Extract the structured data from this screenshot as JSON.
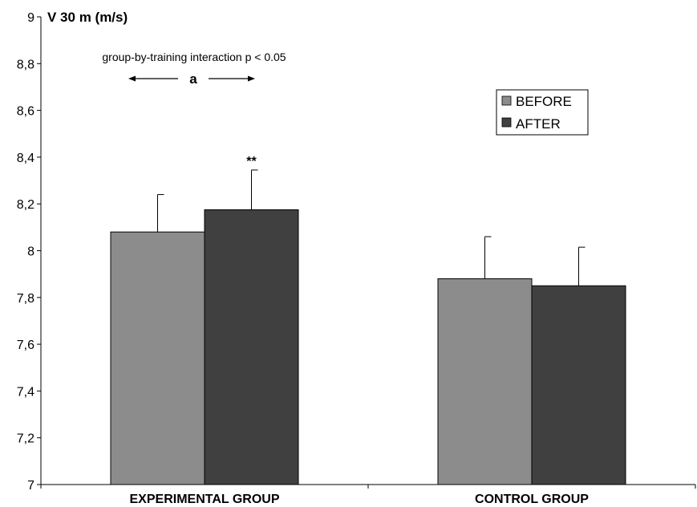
{
  "chart_data": {
    "type": "bar",
    "title": "V 30 m (m/s)",
    "categories": [
      "EXPERIMENTAL GROUP",
      "CONTROL GROUP"
    ],
    "series": [
      {
        "name": "BEFORE",
        "color": "#8c8c8c",
        "values": [
          8.08,
          7.88
        ],
        "errors": [
          0.16,
          0.18
        ]
      },
      {
        "name": "AFTER",
        "color": "#404040",
        "values": [
          8.175,
          7.85
        ],
        "errors": [
          0.17,
          0.165
        ]
      }
    ],
    "ylim": [
      7,
      9
    ],
    "yticks": [
      7,
      7.2,
      7.4,
      7.6,
      7.8,
      8,
      8.2,
      8.4,
      8.6,
      8.8,
      9
    ],
    "ytick_labels": [
      "7",
      "7,2",
      "7,4",
      "7,6",
      "7,8",
      "8",
      "8,2",
      "8,4",
      "8,6",
      "8,8",
      "9"
    ],
    "grid": false,
    "legend_position": "top-right",
    "annotations": {
      "interaction_text": "group-by-training interaction p < 0.05",
      "interaction_letter": "a",
      "significance_marker": "**"
    }
  }
}
